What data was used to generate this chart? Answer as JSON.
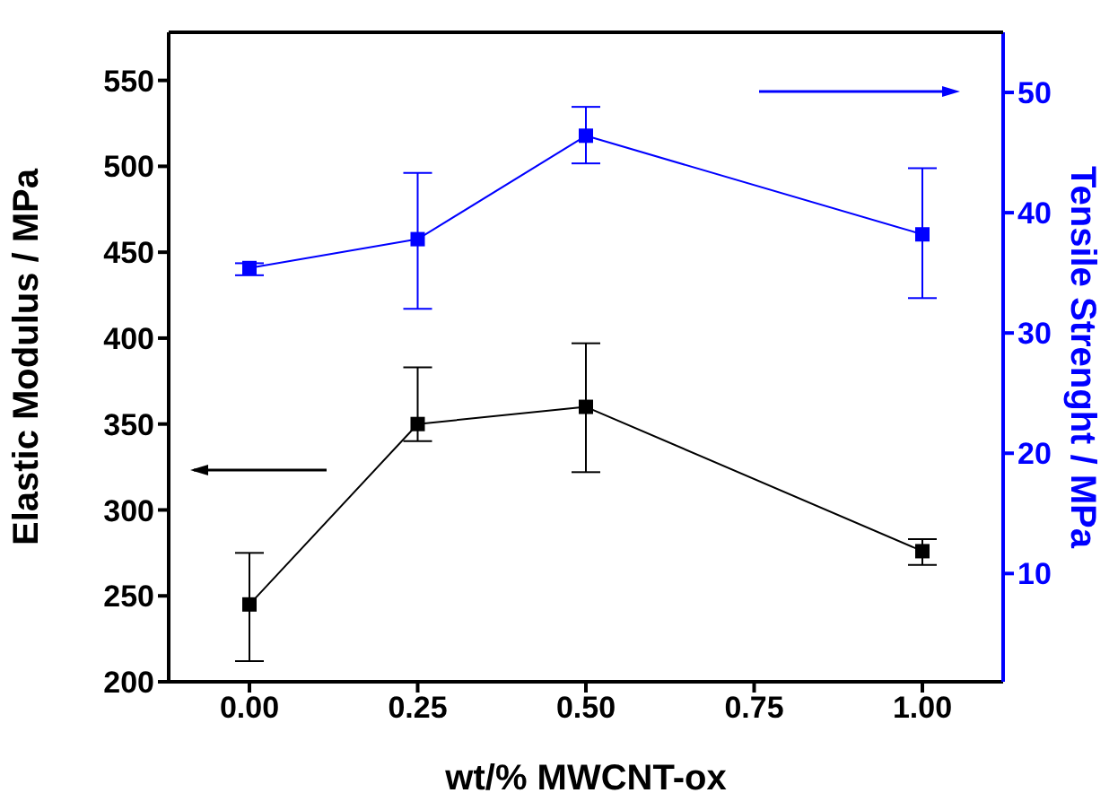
{
  "chart_data": {
    "type": "line",
    "x": [
      0,
      0.25,
      0.5,
      1.0
    ],
    "xlabel": "wt/% MWCNT-ox",
    "ylabel": "Elastic Modulus / MPa",
    "y2label": "Tensile Strenght / MPa",
    "xlim": [
      -0.12,
      1.12
    ],
    "xticks": [
      {
        "value": 0,
        "label": "0.00"
      },
      {
        "value": 0.25,
        "label": "0.25"
      },
      {
        "value": 0.5,
        "label": "0.50"
      },
      {
        "value": 0.75,
        "label": "0.75"
      },
      {
        "value": 1.0,
        "label": "1.00"
      }
    ],
    "ylim": [
      200,
      578
    ],
    "yticks": [
      200,
      250,
      300,
      350,
      400,
      450,
      500,
      550
    ],
    "y2lim": [
      1,
      55
    ],
    "y2ticks": [
      10,
      20,
      30,
      40,
      50
    ],
    "marker": "square",
    "grid": false,
    "legend": false,
    "series": [
      {
        "color": "#000000",
        "values": [
          245,
          350,
          360,
          276
        ],
        "errors": [
          [
            212,
            275
          ],
          [
            340,
            383
          ],
          [
            322,
            397
          ],
          [
            268,
            283
          ]
        ]
      },
      {
        "color": "#0000ff",
        "axis": "y2",
        "values": [
          35.4,
          37.8,
          46.4,
          38.2
        ],
        "errors": [
          [
            34.8,
            35.8
          ],
          [
            32.0,
            43.3
          ],
          [
            44.1,
            48.8
          ],
          [
            32.9,
            43.7
          ]
        ]
      }
    ]
  }
}
